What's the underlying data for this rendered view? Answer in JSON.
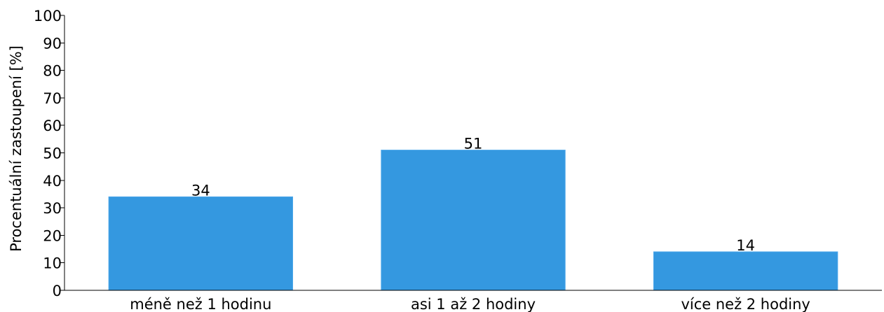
{
  "chart_data": {
    "type": "bar",
    "categories": [
      "méně než 1 hodinu",
      "asi 1 až 2 hodiny",
      "více než 2 hodiny"
    ],
    "values": [
      34,
      51,
      14
    ],
    "data_labels": [
      "34",
      "51",
      "14"
    ],
    "title": "",
    "xlabel": "",
    "ylabel": "Procentuální zastoupení [%]",
    "ylim": [
      0,
      100
    ],
    "yticks": [
      0,
      10,
      20,
      30,
      40,
      50,
      60,
      70,
      80,
      90,
      100
    ],
    "grid": false,
    "legend": "none",
    "bar_color": "#3498e0"
  }
}
